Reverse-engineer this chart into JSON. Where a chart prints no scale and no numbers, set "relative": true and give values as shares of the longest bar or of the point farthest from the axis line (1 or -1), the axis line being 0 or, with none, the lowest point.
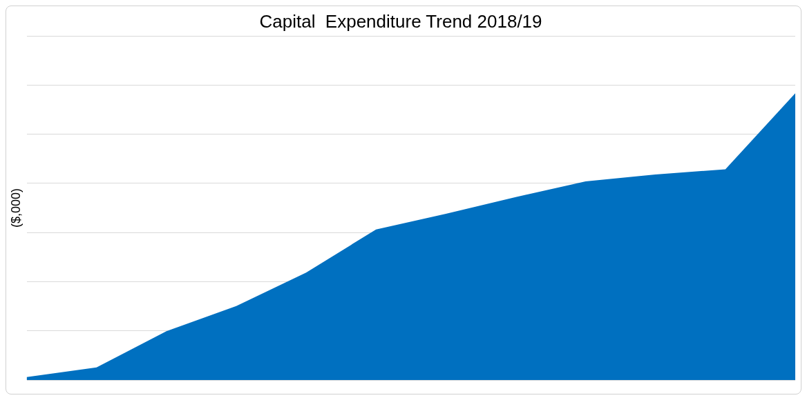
{
  "chart_data": {
    "type": "area",
    "title": "Capital  Expenditure Trend 2018/19",
    "ylabel": "($,000)",
    "relative": true,
    "grid": "y",
    "legend": false,
    "categories": [
      null,
      null,
      null,
      null,
      null,
      null,
      null,
      null,
      null,
      null,
      null,
      null
    ],
    "series": [
      {
        "color": "#0070c0",
        "values": [
          0.01,
          0.044,
          0.17,
          0.258,
          0.375,
          0.525,
          0.58,
          0.638,
          0.693,
          0.717,
          0.735,
          1
        ]
      }
    ]
  }
}
